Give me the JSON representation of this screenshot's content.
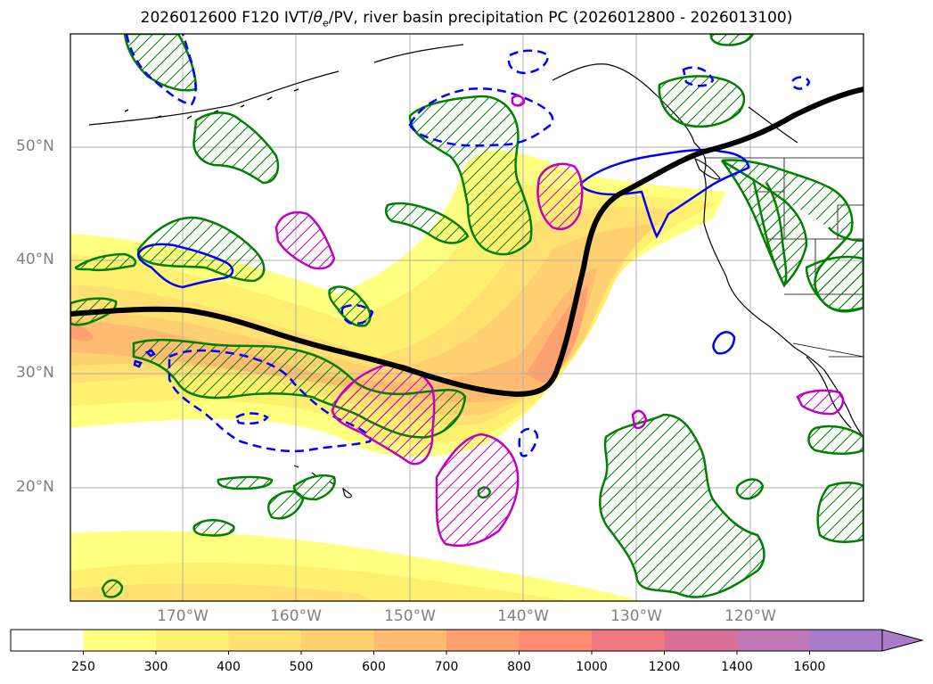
{
  "map": {
    "title_prefix": "2026012600 F120 IVT/",
    "title_theta": "θ",
    "title_sub": "e",
    "title_suffix": "/PV, river basin precipitation PC (2026012800 - 2026013100)",
    "lat_labels": [
      "50°N",
      "40°N",
      "30°N",
      "20°N"
    ],
    "lon_labels": [
      "170°W",
      "160°W",
      "150°W",
      "140°W",
      "130°W",
      "120°W"
    ],
    "extent": {
      "lon_min": -180,
      "lon_max": -110,
      "lat_min": 10,
      "lat_max": 60
    },
    "colors": {
      "pv_contour": "#000000",
      "precip_pos": "#008000",
      "theta_e_neg": "#0000ff",
      "magenta_contour": "#c000c0",
      "coastline": "#000000"
    }
  },
  "colorbar": {
    "levels": [
      "250",
      "300",
      "400",
      "500",
      "600",
      "700",
      "800",
      "1000",
      "1200",
      "1400",
      "1600"
    ],
    "colors": [
      "#ffffff",
      "#ffff80",
      "#fff070",
      "#ffe070",
      "#ffd070",
      "#ffbc70",
      "#ffa070",
      "#ff8c70",
      "#f07880",
      "#d87098",
      "#c078b8",
      "#a87cc8"
    ],
    "extend": "max"
  }
}
